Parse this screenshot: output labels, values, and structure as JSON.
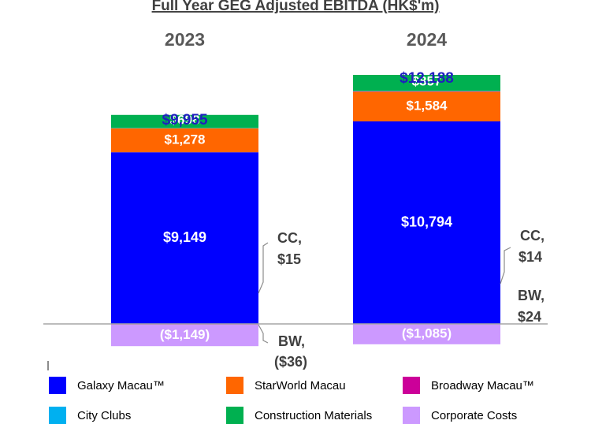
{
  "chart_data": {
    "type": "bar",
    "stacked": true,
    "title": "Full Year GEG Adjusted EBITDA (HK$'m)",
    "xlabel": "",
    "ylabel": "",
    "grid": false,
    "categories": [
      "2023",
      "2024"
    ],
    "totals": [
      9955,
      12188
    ],
    "total_labels": [
      "$9,955",
      "$12,188"
    ],
    "series": [
      {
        "name": "Galaxy Macau™",
        "color": "#0000FF",
        "values": [
          9149,
          10794
        ],
        "labels": [
          "$9,149",
          "$10,794"
        ],
        "label_color": "#ffffff"
      },
      {
        "name": "StarWorld Macau",
        "color": "#FF6600",
        "values": [
          1278,
          1584
        ],
        "labels": [
          "$1,278",
          "$1,584"
        ],
        "label_color": "#ffffff"
      },
      {
        "name": "Broadway Macau™",
        "color": "#CC0099",
        "values": [
          -36,
          24
        ],
        "labels": [
          "",
          ""
        ],
        "label_color": "#ffffff"
      },
      {
        "name": "City Clubs",
        "color": "#00B0F0",
        "values": [
          15,
          14
        ],
        "labels": [
          "",
          ""
        ],
        "label_color": "#ffffff"
      },
      {
        "name": "Construction Materials",
        "color": "#00B050",
        "values": [
          698,
          857
        ],
        "labels": [
          "$698",
          "$857"
        ],
        "label_color": "#ffffff"
      },
      {
        "name": "Corporate Costs",
        "color": "#CC99FF",
        "values": [
          -1149,
          -1085
        ],
        "labels": [
          "($1,149)",
          "($1,085)"
        ],
        "label_color": "#ffffff"
      }
    ],
    "callouts": [
      {
        "category": "2023",
        "lines": [
          "CC,",
          "$15"
        ]
      },
      {
        "category": "2023",
        "lines": [
          "BW,",
          "($36)"
        ]
      },
      {
        "category": "2024",
        "lines": [
          "CC,",
          "$14"
        ]
      },
      {
        "category": "2024",
        "lines": [
          "BW,",
          "$24"
        ]
      }
    ],
    "legend_position": "bottom"
  }
}
